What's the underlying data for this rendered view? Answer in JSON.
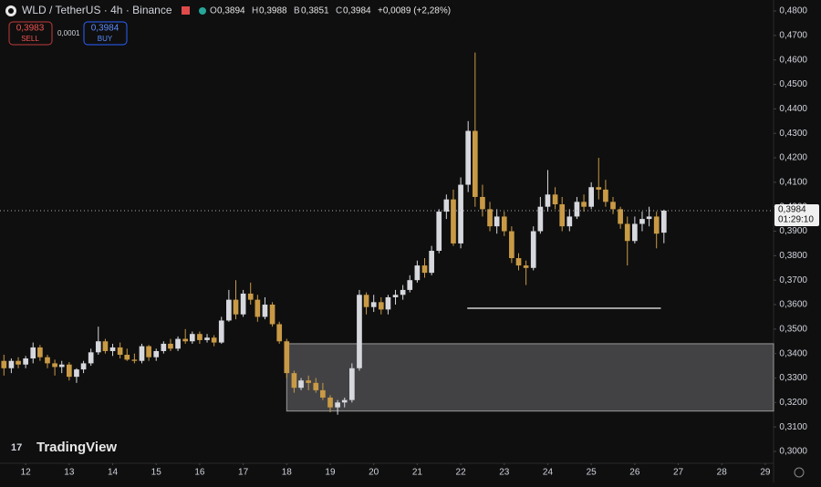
{
  "header": {
    "symbol": "WLD / TetherUS · 4h · Binance",
    "ohlc": [
      {
        "label": "O",
        "value": "0,3894"
      },
      {
        "label": "H",
        "value": "0,3988"
      },
      {
        "label": "B",
        "value": "0,3851"
      },
      {
        "label": "C",
        "value": "0,3984"
      }
    ],
    "change": "+0,0089 (+2,28%)",
    "sell": {
      "price": "0,3983",
      "label": "SELL"
    },
    "spread": "0,0001",
    "buy": {
      "price": "0,3984",
      "label": "BUY"
    }
  },
  "watermark": "TradingView",
  "chart_data": {
    "type": "candlestick",
    "up_color": "#d6d8de",
    "down_color": "#c99a45",
    "x": [
      11.5,
      11.67,
      11.83,
      12,
      12.17,
      12.33,
      12.5,
      12.67,
      12.83,
      13,
      13.17,
      13.33,
      13.5,
      13.67,
      13.83,
      14,
      14.17,
      14.33,
      14.5,
      14.67,
      14.83,
      15,
      15.17,
      15.33,
      15.5,
      15.67,
      15.83,
      16,
      16.17,
      16.33,
      16.5,
      16.67,
      16.83,
      17,
      17.17,
      17.33,
      17.5,
      17.67,
      17.83,
      18,
      18.17,
      18.33,
      18.5,
      18.67,
      18.83,
      19,
      19.17,
      19.33,
      19.5,
      19.67,
      19.83,
      20,
      20.17,
      20.33,
      20.5,
      20.67,
      20.83,
      21,
      21.17,
      21.33,
      21.5,
      21.67,
      21.83,
      22,
      22.17,
      22.33,
      22.5,
      22.67,
      22.83,
      23,
      23.17,
      23.33,
      23.5,
      23.67,
      23.83,
      24,
      24.17,
      24.33,
      24.5,
      24.67,
      24.83,
      25,
      25.17,
      25.33,
      25.5,
      25.67,
      25.83,
      26,
      26.17,
      26.33,
      26.5,
      26.67
    ],
    "open": [
      0.337,
      0.334,
      0.337,
      0.3355,
      0.338,
      0.3425,
      0.3385,
      0.336,
      0.3345,
      0.3355,
      0.3305,
      0.3335,
      0.336,
      0.3405,
      0.345,
      0.341,
      0.3425,
      0.3395,
      0.3375,
      0.337,
      0.343,
      0.3385,
      0.341,
      0.344,
      0.342,
      0.346,
      0.345,
      0.348,
      0.3455,
      0.3465,
      0.3445,
      0.3535,
      0.362,
      0.356,
      0.3645,
      0.362,
      0.355,
      0.36,
      0.352,
      0.345,
      0.332,
      0.326,
      0.329,
      0.328,
      0.325,
      0.322,
      0.318,
      0.32,
      0.321,
      0.334,
      0.364,
      0.359,
      0.361,
      0.358,
      0.363,
      0.364,
      0.366,
      0.37,
      0.376,
      0.373,
      0.382,
      0.398,
      0.403,
      0.385,
      0.409,
      0.431,
      0.404,
      0.399,
      0.392,
      0.396,
      0.39,
      0.379,
      0.376,
      0.375,
      0.39,
      0.4,
      0.405,
      0.401,
      0.392,
      0.396,
      0.402,
      0.4,
      0.408,
      0.407,
      0.402,
      0.399,
      0.393,
      0.386,
      0.393,
      0.395,
      0.396,
      0.3894
    ],
    "high": [
      0.3395,
      0.338,
      0.3385,
      0.339,
      0.3445,
      0.3435,
      0.3395,
      0.3375,
      0.337,
      0.3365,
      0.334,
      0.337,
      0.342,
      0.351,
      0.346,
      0.344,
      0.3445,
      0.342,
      0.34,
      0.344,
      0.3435,
      0.342,
      0.345,
      0.346,
      0.347,
      0.35,
      0.349,
      0.349,
      0.348,
      0.3475,
      0.355,
      0.366,
      0.37,
      0.366,
      0.369,
      0.364,
      0.363,
      0.361,
      0.353,
      0.346,
      0.333,
      0.33,
      0.331,
      0.33,
      0.328,
      0.323,
      0.321,
      0.322,
      0.336,
      0.366,
      0.365,
      0.364,
      0.363,
      0.364,
      0.366,
      0.368,
      0.372,
      0.378,
      0.379,
      0.384,
      0.399,
      0.405,
      0.407,
      0.412,
      0.435,
      0.463,
      0.409,
      0.402,
      0.399,
      0.398,
      0.392,
      0.381,
      0.378,
      0.392,
      0.404,
      0.415,
      0.408,
      0.404,
      0.399,
      0.404,
      0.405,
      0.41,
      0.42,
      0.411,
      0.404,
      0.4,
      0.396,
      0.396,
      0.398,
      0.4,
      0.398,
      0.3988
    ],
    "low": [
      0.331,
      0.332,
      0.334,
      0.334,
      0.336,
      0.337,
      0.334,
      0.331,
      0.332,
      0.329,
      0.328,
      0.332,
      0.335,
      0.3395,
      0.34,
      0.339,
      0.338,
      0.337,
      0.336,
      0.336,
      0.337,
      0.337,
      0.34,
      0.341,
      0.341,
      0.344,
      0.344,
      0.344,
      0.3445,
      0.343,
      0.344,
      0.353,
      0.354,
      0.355,
      0.36,
      0.353,
      0.354,
      0.351,
      0.344,
      0.33,
      0.324,
      0.325,
      0.325,
      0.324,
      0.321,
      0.316,
      0.315,
      0.318,
      0.32,
      0.333,
      0.356,
      0.357,
      0.356,
      0.356,
      0.36,
      0.362,
      0.365,
      0.369,
      0.371,
      0.372,
      0.381,
      0.395,
      0.384,
      0.383,
      0.406,
      0.4,
      0.396,
      0.39,
      0.389,
      0.388,
      0.377,
      0.374,
      0.368,
      0.374,
      0.389,
      0.398,
      0.399,
      0.39,
      0.39,
      0.395,
      0.398,
      0.399,
      0.403,
      0.4,
      0.397,
      0.391,
      0.376,
      0.385,
      0.39,
      0.392,
      0.383,
      0.3851
    ],
    "close": [
      0.334,
      0.337,
      0.3355,
      0.338,
      0.3425,
      0.3385,
      0.336,
      0.3345,
      0.3355,
      0.3305,
      0.3335,
      0.336,
      0.3405,
      0.345,
      0.341,
      0.3425,
      0.3395,
      0.3375,
      0.337,
      0.343,
      0.3385,
      0.341,
      0.344,
      0.342,
      0.346,
      0.345,
      0.348,
      0.3455,
      0.3465,
      0.3445,
      0.3535,
      0.362,
      0.356,
      0.3645,
      0.362,
      0.355,
      0.36,
      0.352,
      0.345,
      0.332,
      0.326,
      0.329,
      0.328,
      0.325,
      0.322,
      0.318,
      0.32,
      0.321,
      0.334,
      0.364,
      0.359,
      0.361,
      0.358,
      0.363,
      0.364,
      0.366,
      0.37,
      0.376,
      0.373,
      0.382,
      0.398,
      0.403,
      0.385,
      0.409,
      0.431,
      0.404,
      0.399,
      0.392,
      0.396,
      0.39,
      0.379,
      0.376,
      0.375,
      0.39,
      0.4,
      0.405,
      0.401,
      0.392,
      0.396,
      0.402,
      0.4,
      0.408,
      0.407,
      0.402,
      0.399,
      0.393,
      0.386,
      0.393,
      0.395,
      0.396,
      0.389,
      0.3984
    ],
    "xlim": [
      11.41,
      29.19
    ],
    "xticks": [
      12,
      13,
      14,
      15,
      16,
      17,
      18,
      19,
      20,
      21,
      22,
      23,
      24,
      25,
      26,
      27,
      28,
      29
    ],
    "ylim": [
      0.2944,
      0.4845
    ],
    "yticks": [
      {
        "value": 0.3,
        "label": "0,3000"
      },
      {
        "value": 0.31,
        "label": "0,3100"
      },
      {
        "value": 0.32,
        "label": "0,3200"
      },
      {
        "value": 0.33,
        "label": "0,3300"
      },
      {
        "value": 0.34,
        "label": "0,3400"
      },
      {
        "value": 0.35,
        "label": "0,3500"
      },
      {
        "value": 0.36,
        "label": "0,3600"
      },
      {
        "value": 0.37,
        "label": "0,3700"
      },
      {
        "value": 0.38,
        "label": "0,3800"
      },
      {
        "value": 0.39,
        "label": "0,3900"
      },
      {
        "value": 0.4,
        "label": "0,4000"
      },
      {
        "value": 0.41,
        "label": "0,4100"
      },
      {
        "value": 0.42,
        "label": "0,4200"
      },
      {
        "value": 0.43,
        "label": "0,4300"
      },
      {
        "value": 0.44,
        "label": "0,4400"
      },
      {
        "value": 0.45,
        "label": "0,4500"
      },
      {
        "value": 0.46,
        "label": "0,4600"
      },
      {
        "value": 0.47,
        "label": "0,4700"
      },
      {
        "value": 0.48,
        "label": "0,4800"
      }
    ],
    "grid": false,
    "zone": {
      "x": [
        18,
        29.19
      ],
      "y": [
        0.3165,
        0.344
      ]
    },
    "level": {
      "x": [
        22.15,
        26.6
      ],
      "y": 0.3585
    },
    "last_price": {
      "value": 0.3984,
      "label": "0,3984",
      "countdown": "01:29:10"
    }
  }
}
